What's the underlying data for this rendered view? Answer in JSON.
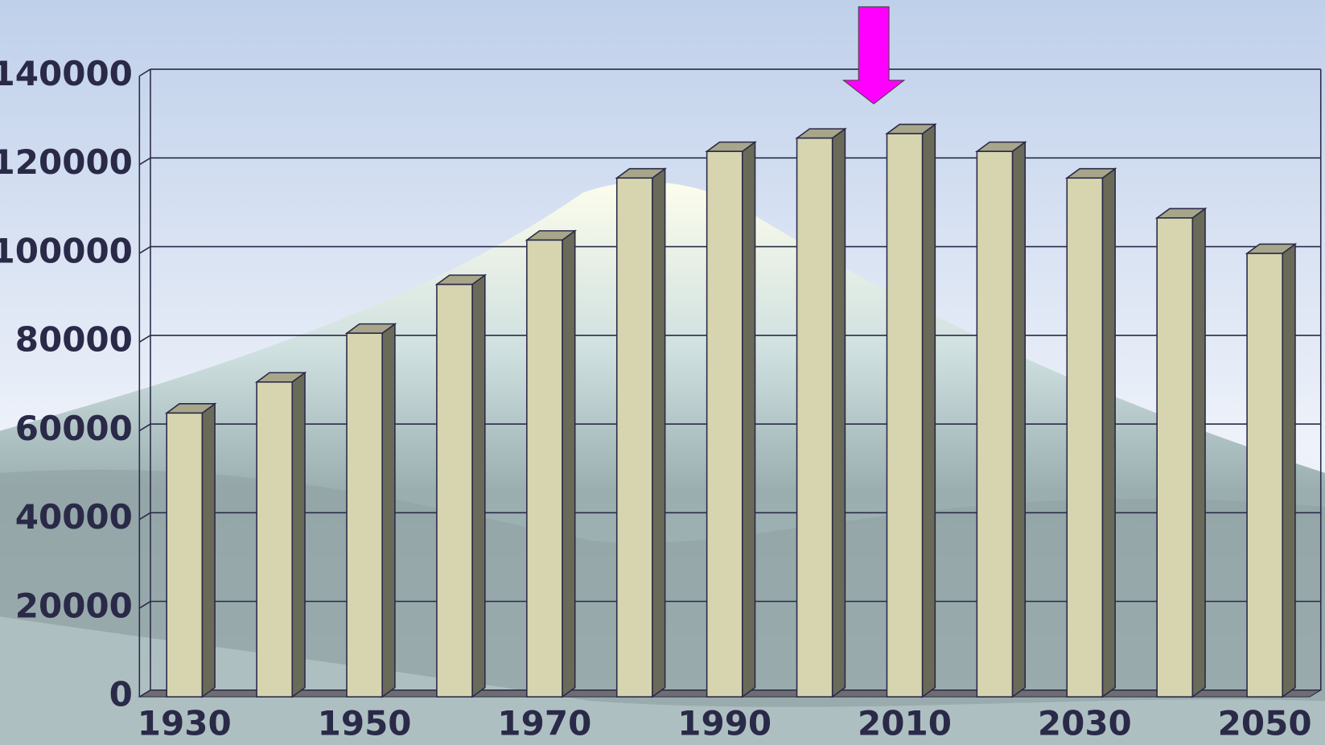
{
  "chart_data": {
    "type": "bar3d",
    "categories": [
      "1930",
      null,
      "1950",
      null,
      "1970",
      null,
      "1990",
      null,
      "2010",
      null,
      "2030",
      null,
      "2050"
    ],
    "values": [
      64000,
      71000,
      82000,
      93000,
      103000,
      117000,
      123000,
      126000,
      127000,
      123000,
      117000,
      108000,
      100000
    ],
    "color": "#d6d5b0",
    "ylim": [
      0,
      140000
    ],
    "yticks": [
      0,
      20000,
      40000,
      60000,
      80000,
      100000,
      120000,
      140000
    ],
    "grid": true
  }
}
